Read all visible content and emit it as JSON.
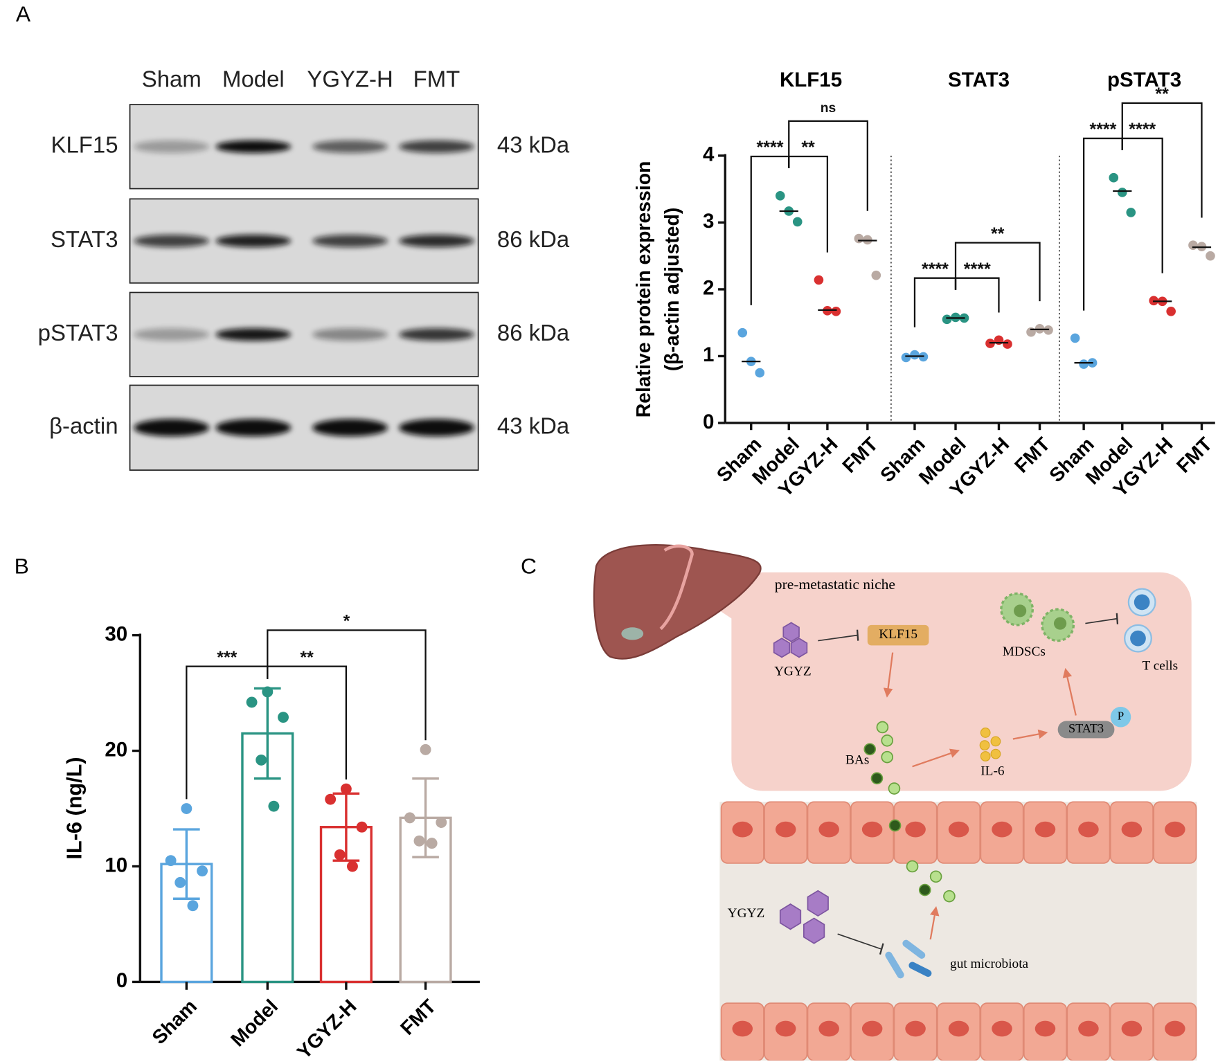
{
  "panel_labels": [
    "A",
    "B",
    "C"
  ],
  "blot": {
    "lanes": [
      "Sham",
      "Model",
      "YGYZ-H",
      "FMT"
    ],
    "rows": [
      {
        "label": "KLF15",
        "size": "43 kDa"
      },
      {
        "label": "STAT3",
        "size": "86 kDa"
      },
      {
        "label": "pSTAT3",
        "size": "86 kDa"
      },
      {
        "label": "β-actin",
        "size": "43 kDa"
      }
    ]
  },
  "chart_data": [
    {
      "type": "strip",
      "ylabel": [
        "Relative  protein expression",
        "(β-actin adjusted)"
      ],
      "ylim": [
        0,
        4
      ],
      "yticks": [
        0,
        1,
        2,
        3,
        4
      ],
      "colors": [
        "#5aa5de",
        "#2a9483",
        "#d93030",
        "#b9aaa3"
      ],
      "groups": [
        {
          "title": "KLF15",
          "categories": [
            "Sham",
            "Model",
            "YGYZ-H",
            "FMT"
          ],
          "points": [
            [
              1.35,
              0.92,
              0.75
            ],
            [
              3.4,
              3.17,
              3.01
            ],
            [
              2.14,
              1.68,
              1.67
            ],
            [
              2.76,
              2.74,
              2.21
            ]
          ],
          "medians": [
            0.92,
            3.17,
            1.69,
            2.73
          ],
          "comparisons": [
            {
              "from": "Sham",
              "to": "Model",
              "label": "****"
            },
            {
              "from": "Model",
              "to": "YGYZ-H",
              "label": "**"
            },
            {
              "from": "Model",
              "to": "FMT",
              "label": "ns"
            }
          ]
        },
        {
          "title": "STAT3",
          "categories": [
            "Sham",
            "Model",
            "YGYZ-H",
            "FMT"
          ],
          "points": [
            [
              0.98,
              1.02,
              0.99
            ],
            [
              1.55,
              1.58,
              1.57
            ],
            [
              1.19,
              1.24,
              1.18
            ],
            [
              1.36,
              1.41,
              1.39
            ]
          ],
          "medians": [
            1.0,
            1.57,
            1.2,
            1.4
          ],
          "comparisons": [
            {
              "from": "Sham",
              "to": "Model",
              "label": "****"
            },
            {
              "from": "Model",
              "to": "YGYZ-H",
              "label": "****"
            },
            {
              "from": "Model",
              "to": "FMT",
              "label": "**"
            }
          ]
        },
        {
          "title": "pSTAT3",
          "categories": [
            "Sham",
            "Model",
            "YGYZ-H",
            "FMT"
          ],
          "points": [
            [
              1.27,
              0.88,
              0.9
            ],
            [
              3.67,
              3.45,
              3.15
            ],
            [
              1.83,
              1.82,
              1.67
            ],
            [
              2.66,
              2.64,
              2.5
            ]
          ],
          "medians": [
            0.9,
            3.47,
            1.82,
            2.63
          ],
          "comparisons": [
            {
              "from": "Sham",
              "to": "Model",
              "label": "****"
            },
            {
              "from": "Model",
              "to": "YGYZ-H",
              "label": "****"
            },
            {
              "from": "Model",
              "to": "FMT",
              "label": "**"
            }
          ]
        }
      ]
    },
    {
      "type": "bar",
      "ylabel": "IL-6 (ng/L)",
      "ylim": [
        0,
        30
      ],
      "yticks": [
        0,
        10,
        20,
        30
      ],
      "categories": [
        "Sham",
        "Model",
        "YGYZ-H",
        "FMT"
      ],
      "colors": [
        "#5aa5de",
        "#2a9483",
        "#d93030",
        "#b9aaa3"
      ],
      "values": [
        10.2,
        21.5,
        13.4,
        14.2
      ],
      "sd": [
        3.0,
        3.9,
        2.9,
        3.4
      ],
      "points": [
        [
          15.0,
          10.5,
          9.6,
          8.6,
          6.6
        ],
        [
          25.1,
          24.2,
          22.9,
          19.2,
          15.2
        ],
        [
          16.7,
          15.8,
          13.4,
          11.0,
          10.0
        ],
        [
          20.1,
          14.2,
          13.8,
          12.2,
          12.0
        ]
      ],
      "comparisons": [
        {
          "from": "Sham",
          "to": "Model",
          "label": "***"
        },
        {
          "from": "Model",
          "to": "YGYZ-H",
          "label": "**"
        },
        {
          "from": "Model",
          "to": "FMT",
          "label": "*"
        }
      ]
    }
  ],
  "diagram": {
    "niche": "pre-metastatic niche",
    "ygyz_top": "YGYZ",
    "klf15": "KLF15",
    "mdscs": "MDSCs",
    "t_cells": "T cells",
    "bas": "BAs",
    "il6": "IL-6",
    "stat3": "STAT3",
    "p": "P",
    "ygyz_gut": "YGYZ",
    "microbiota": "gut microbiota"
  }
}
